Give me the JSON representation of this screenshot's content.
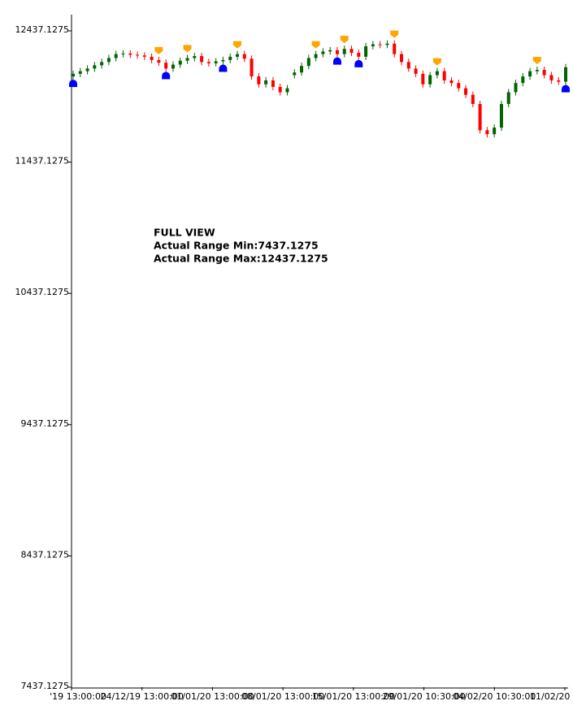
{
  "chart_data": {
    "type": "candlestick",
    "annotation": [
      "FULL VIEW",
      "Actual Range Min:7437.1275",
      "Actual Range Max:12437.1275"
    ],
    "ylim": [
      7437.1275,
      12437.1275
    ],
    "yticks": [
      7437.1275,
      8437.1275,
      9437.1275,
      10437.1275,
      11437.1275,
      12437.1275
    ],
    "xtick_labels": [
      "'19 13:00:00",
      "24/12/19 13:00:00",
      "01/01/20 13:00:00",
      "08/01/20 13:00:00",
      "15/01/20 13:00:00",
      "29/01/20 10:30:00",
      "04/02/20 10:30:00",
      "11/02/20"
    ],
    "up_color": "#006400",
    "down_color": "#ff0000",
    "buy_color": "#0000ff",
    "sell_color": "#ffa500",
    "open": [
      12090,
      12110,
      12130,
      12150,
      12175,
      12200,
      12230,
      12260,
      12265,
      12255,
      12250,
      12240,
      12215,
      12195,
      12150,
      12180,
      12210,
      12230,
      12245,
      12200,
      12190,
      12205,
      12215,
      12240,
      12260,
      12225,
      12090,
      12030,
      12060,
      12010,
      11970,
      12100,
      12120,
      12170,
      12230,
      12260,
      12280,
      12290,
      12260,
      12300,
      12270,
      12240,
      12320,
      12335,
      12330,
      12340,
      12260,
      12200,
      12150,
      12110,
      12030,
      12100,
      12130,
      12060,
      12040,
      12000,
      11950,
      11880,
      11680,
      11650,
      11700,
      11880,
      11970,
      12040,
      12090,
      12130,
      12140,
      12100,
      12060,
      12050
    ],
    "high": [
      12135,
      12155,
      12175,
      12200,
      12225,
      12255,
      12285,
      12290,
      12290,
      12280,
      12275,
      12265,
      12240,
      12220,
      12205,
      12235,
      12255,
      12270,
      12270,
      12225,
      12230,
      12240,
      12265,
      12285,
      12285,
      12250,
      12115,
      12085,
      12085,
      12035,
      12025,
      12145,
      12195,
      12255,
      12285,
      12305,
      12315,
      12315,
      12325,
      12325,
      12295,
      12345,
      12360,
      12360,
      12365,
      12365,
      12285,
      12225,
      12175,
      12135,
      12125,
      12155,
      12155,
      12085,
      12065,
      12025,
      11975,
      11905,
      11705,
      11725,
      11905,
      11995,
      12065,
      12115,
      12155,
      12165,
      12165,
      12125,
      12085,
      12185
    ],
    "low": [
      12065,
      12085,
      12105,
      12125,
      12150,
      12175,
      12205,
      12235,
      12230,
      12225,
      12215,
      12190,
      12170,
      12125,
      12125,
      12155,
      12185,
      12205,
      12175,
      12165,
      12165,
      12180,
      12190,
      12215,
      12200,
      12065,
      12005,
      12005,
      11985,
      11945,
      11945,
      12075,
      12095,
      12145,
      12205,
      12235,
      12255,
      12235,
      12235,
      12245,
      12215,
      12215,
      12295,
      12305,
      12305,
      12235,
      12175,
      12125,
      12085,
      12005,
      12005,
      12075,
      12035,
      12015,
      11975,
      11925,
      11855,
      11655,
      11625,
      11625,
      11675,
      11855,
      11945,
      12015,
      12065,
      12105,
      12075,
      12035,
      12025,
      12025
    ],
    "close": [
      12110,
      12130,
      12150,
      12175,
      12200,
      12230,
      12260,
      12265,
      12255,
      12250,
      12240,
      12215,
      12195,
      12150,
      12180,
      12210,
      12230,
      12245,
      12200,
      12190,
      12205,
      12215,
      12240,
      12260,
      12225,
      12090,
      12030,
      12060,
      12010,
      11970,
      12000,
      12120,
      12170,
      12230,
      12260,
      12280,
      12290,
      12260,
      12300,
      12270,
      12240,
      12320,
      12335,
      12330,
      12340,
      12260,
      12200,
      12150,
      12110,
      12030,
      12100,
      12130,
      12060,
      12040,
      12000,
      11950,
      11880,
      11680,
      11650,
      11700,
      11880,
      11970,
      12040,
      12090,
      12130,
      12140,
      12100,
      12060,
      12050,
      12160
    ],
    "buy_signals": [
      12065,
      null,
      null,
      null,
      null,
      null,
      null,
      null,
      null,
      null,
      null,
      null,
      null,
      12125,
      null,
      null,
      null,
      null,
      null,
      null,
      null,
      12180,
      null,
      null,
      null,
      null,
      null,
      null,
      null,
      null,
      null,
      null,
      null,
      null,
      null,
      null,
      null,
      12235,
      null,
      null,
      12215,
      null,
      null,
      null,
      null,
      null,
      null,
      null,
      null,
      null,
      null,
      null,
      null,
      null,
      null,
      null,
      null,
      null,
      null,
      null,
      null,
      null,
      null,
      null,
      null,
      null,
      null,
      null,
      null,
      12025
    ],
    "sell_signals": [
      null,
      null,
      null,
      null,
      null,
      null,
      null,
      null,
      null,
      null,
      null,
      null,
      12240,
      null,
      null,
      null,
      12255,
      null,
      null,
      null,
      null,
      null,
      null,
      12285,
      null,
      null,
      null,
      null,
      null,
      null,
      null,
      null,
      null,
      null,
      12285,
      null,
      null,
      null,
      12325,
      null,
      null,
      null,
      null,
      null,
      null,
      12365,
      null,
      null,
      null,
      null,
      null,
      12155,
      null,
      null,
      null,
      null,
      null,
      null,
      null,
      null,
      null,
      null,
      null,
      null,
      null,
      12165,
      null,
      null,
      null,
      null
    ]
  }
}
